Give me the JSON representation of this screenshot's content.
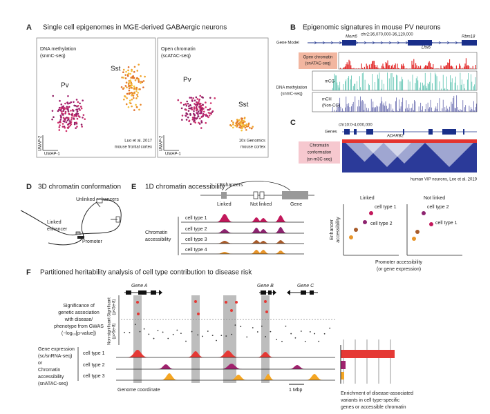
{
  "panel_a": {
    "letter": "A",
    "title": "Single cell epigenomes in MGE-derived GABAergic neurons",
    "left": {
      "assay": [
        "DNA methylation",
        "(snmC-seq)"
      ],
      "cluster_1": "Pv",
      "cluster_2": "Sst",
      "y_axis": "UMAP-2",
      "x_axis": "UMAP-1",
      "source": [
        "Luo et al. 2017",
        "mouse frontal cortex"
      ]
    },
    "right": {
      "assay": [
        "Open chromatin",
        "(scATAC-seq)"
      ],
      "cluster_1": "Pv",
      "cluster_2": "Sst",
      "y_axis": "UMAP-2",
      "x_axis": "UMAP-1",
      "source": [
        "10x Genomics",
        "mouse cortex"
      ]
    }
  },
  "panel_b": {
    "letter": "B",
    "title": "Epigenomic signatures in mouse PV neurons",
    "coordinates": "chr2:36,070,000-36,120,000",
    "gene_model": "Gene Model",
    "genes": [
      "Morn5",
      "Lhx6",
      "Rbm18"
    ],
    "open_chromatin": [
      "Open chromatin",
      "(snATAC-seq)"
    ],
    "dna_methylation": [
      "DNA methylation",
      "(snmC-seq)"
    ],
    "mcg": "mCG",
    "mch": [
      "mCH",
      "(Non-CG)"
    ]
  },
  "panel_c": {
    "letter": "C",
    "coordinates": "chr10:0-4,000,000",
    "genes_label": "Genes",
    "gene": "ADARB2",
    "track": [
      "Chromatin",
      "conformation",
      "(sn-m3C-seq)"
    ],
    "caption": "human VIP neurons, Lee et al. 2019"
  },
  "panel_d": {
    "letter": "D",
    "title": "3D chromatin conformation",
    "unlinked": "Unlinked enhancers",
    "linked": [
      "Linked",
      "enhancer"
    ],
    "promoter": "Promoter"
  },
  "panel_e": {
    "letter": "E",
    "title": "1D chromatin accessibility",
    "enhancers": "Enhancers",
    "linked": "Linked",
    "not_linked": "Not linked",
    "gene": "Gene",
    "track_label": [
      "Chromatin",
      "accessibility"
    ],
    "cell_types": [
      "cell type 1",
      "cell type 2",
      "cell type 3",
      "cell type 4"
    ],
    "plots": [
      {
        "title": "Linked",
        "points": [
          "cell type 1",
          "cell type 2"
        ]
      },
      {
        "title": "Not linked",
        "points": [
          "cell type 2",
          "cell type 1"
        ]
      }
    ],
    "y_axis": [
      "Enhancer",
      "accessibility"
    ],
    "x_axis": [
      "Promoter accessibility",
      "(or gene expression)"
    ]
  },
  "panel_f": {
    "letter": "F",
    "title": "Partitioned heritability analysis of cell type contribution to disease risk",
    "genes": [
      "Gene A",
      "Gene B",
      "Gene C"
    ],
    "gwas_label": [
      "Significance of",
      "genetic association",
      "with disease/",
      "phenotype from GWAS",
      "(−log₁₀[p-value])"
    ],
    "significant": [
      "Significant",
      "(p<5e-8)"
    ],
    "non_significant": [
      "Non-significant",
      "(p>5e-8)"
    ],
    "track_label": [
      "Gene expression",
      "(sc/snRNA-seq)",
      "or",
      "Chromatin",
      "accessibility",
      "(snATAC-seq)"
    ],
    "cell_types": [
      "cell type 1",
      "cell type 2",
      "cell type 3"
    ],
    "x_axis": "Genome coordinate",
    "scale": "1 Mbp",
    "enrichment": [
      "Enrichment of disease-associated",
      "variants in cell type-specific",
      "genes or accessible chromatin"
    ]
  }
}
